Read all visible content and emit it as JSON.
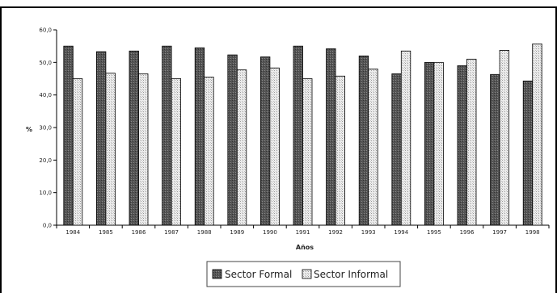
{
  "chart_data": {
    "type": "bar",
    "title": "",
    "xlabel": "Años",
    "ylabel": "%",
    "ylim": [
      0,
      60
    ],
    "yticks": [
      "0,0",
      "10,0",
      "20,0",
      "30,0",
      "40,0",
      "50,0",
      "60,0"
    ],
    "categories": [
      "1984",
      "1985",
      "1986",
      "1987",
      "1988",
      "1989",
      "1990",
      "1991",
      "1992",
      "1993",
      "1994",
      "1995",
      "1996",
      "1997",
      "1998"
    ],
    "series": [
      {
        "name": "Sector Formal",
        "color": "#555555",
        "values": [
          55.0,
          53.3,
          53.5,
          55.0,
          54.5,
          52.3,
          51.7,
          55.0,
          54.2,
          52.0,
          46.5,
          50.0,
          49.0,
          46.3,
          44.3
        ]
      },
      {
        "name": "Sector Informal",
        "color": "#e6e6e6",
        "values": [
          45.0,
          46.7,
          46.5,
          45.0,
          45.5,
          47.7,
          48.3,
          45.0,
          45.8,
          48.0,
          53.5,
          50.0,
          51.0,
          53.7,
          55.7
        ]
      }
    ],
    "legend_position": "bottom",
    "grid": false
  }
}
